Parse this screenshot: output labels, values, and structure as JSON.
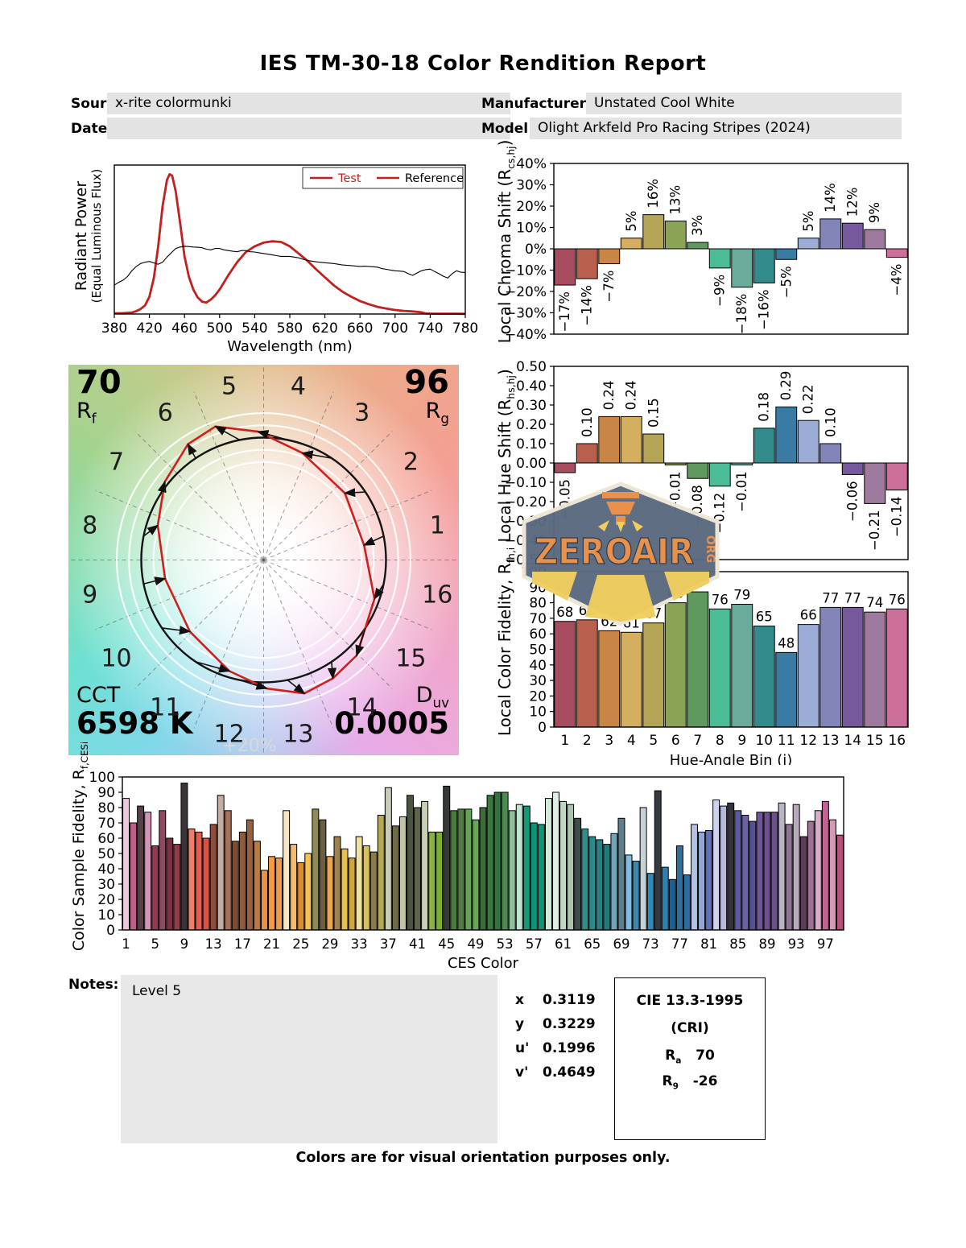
{
  "title": "IES TM-30-18 Color Rendition Report",
  "header": {
    "source_label": "Source:",
    "source_value": "x-rite colormunki",
    "manufacturer_label": "Manufacturer:",
    "manufacturer_value": "Unstated Cool White",
    "date_label": "Date:",
    "date_value": "",
    "model_label": "Model:",
    "model_value": "Olight Arkfeld Pro Racing Stripes (2024)"
  },
  "cvg": {
    "rf_value": "70",
    "rf_base": "R",
    "rf_sub": "f",
    "rg_value": "96",
    "rg_base": "R",
    "rg_sub": "g",
    "cct_label": "CCT",
    "cct_value": "6598 K",
    "duv_base": "D",
    "duv_sub": "uv",
    "duv_value": "0.0005",
    "ring_label": "+20%"
  },
  "watermark": {
    "text": "ZEROAIR",
    "org": "ORG"
  },
  "notes": {
    "label": "Notes:",
    "value": "Level 5"
  },
  "chromaticity": [
    {
      "label": "x",
      "value": "0.3119"
    },
    {
      "label": "y",
      "value": "0.3229"
    },
    {
      "label": "u'",
      "value": "0.1996"
    },
    {
      "label": "v'",
      "value": "0.4649"
    }
  ],
  "cie": {
    "title": "CIE 13.3-1995",
    "subtitle": "(CRI)",
    "rows": [
      {
        "base": "R",
        "sub": "a",
        "value": "70"
      },
      {
        "base": "R",
        "sub": "9",
        "value": "-26"
      }
    ]
  },
  "footer": "Colors are for visual orientation purposes only.",
  "colors": {
    "test_red": "#c41f1f",
    "reference_black": "#000000",
    "header_box_gray": "#e3e3e3",
    "watermark_slate": "#5a6a7f",
    "watermark_orange": "#e8914d",
    "watermark_yellow": "#f0cf5e"
  },
  "bin_colors": [
    "#a84c60",
    "#b85f4e",
    "#c98545",
    "#d4af60",
    "#b3a554",
    "#8ba355",
    "#609960",
    "#4cbc96",
    "#6aab9c",
    "#338b8b",
    "#3a7ba3",
    "#9bacd6",
    "#8384b8",
    "#76589c",
    "#9e7a9e",
    "#cc7099"
  ],
  "chart_data": [
    {
      "id": "spd",
      "type": "line",
      "xlabel": "Wavelength (nm)",
      "ylabel": "Radiant Power",
      "ylabel2": "(Equal Luminous Flux)",
      "xlim": [
        380,
        780
      ],
      "x_ticks": [
        380,
        420,
        460,
        500,
        540,
        580,
        620,
        660,
        700,
        740,
        780
      ],
      "grid": false,
      "legend_position": "top-right",
      "legend": [
        {
          "name": "Test",
          "swatch": "#c41f1f",
          "text_color": "#c41f1f"
        },
        {
          "name": "Reference",
          "swatch": "#c41f1f",
          "text_color": "#000000"
        }
      ],
      "series": [
        {
          "name": "Test",
          "color": "#c41f1f",
          "width": 2.8,
          "points": [
            [
              380,
              0.005
            ],
            [
              390,
              0.006
            ],
            [
              400,
              0.01
            ],
            [
              405,
              0.02
            ],
            [
              410,
              0.035
            ],
            [
              415,
              0.06
            ],
            [
              420,
              0.12
            ],
            [
              425,
              0.25
            ],
            [
              430,
              0.47
            ],
            [
              435,
              0.75
            ],
            [
              440,
              0.93
            ],
            [
              443,
              0.97
            ],
            [
              446,
              0.96
            ],
            [
              450,
              0.85
            ],
            [
              455,
              0.63
            ],
            [
              460,
              0.4
            ],
            [
              465,
              0.26
            ],
            [
              470,
              0.17
            ],
            [
              475,
              0.115
            ],
            [
              480,
              0.085
            ],
            [
              485,
              0.08
            ],
            [
              490,
              0.1
            ],
            [
              495,
              0.13
            ],
            [
              500,
              0.17
            ],
            [
              510,
              0.27
            ],
            [
              520,
              0.36
            ],
            [
              530,
              0.43
            ],
            [
              540,
              0.47
            ],
            [
              550,
              0.495
            ],
            [
              560,
              0.505
            ],
            [
              570,
              0.5
            ],
            [
              580,
              0.47
            ],
            [
              590,
              0.42
            ],
            [
              600,
              0.37
            ],
            [
              610,
              0.31
            ],
            [
              620,
              0.255
            ],
            [
              630,
              0.2
            ],
            [
              640,
              0.155
            ],
            [
              650,
              0.12
            ],
            [
              660,
              0.09
            ],
            [
              670,
              0.068
            ],
            [
              680,
              0.05
            ],
            [
              690,
              0.038
            ],
            [
              700,
              0.028
            ],
            [
              710,
              0.022
            ],
            [
              720,
              0.018
            ],
            [
              730,
              0.012
            ],
            [
              735,
              0.004
            ],
            [
              740,
              0.003
            ],
            [
              750,
              0.002
            ],
            [
              760,
              0.002
            ],
            [
              770,
              0.002
            ],
            [
              780,
              0.001
            ]
          ]
        },
        {
          "name": "Reference",
          "color": "#000000",
          "width": 1.1,
          "points": [
            [
              380,
              0.2
            ],
            [
              385,
              0.22
            ],
            [
              390,
              0.235
            ],
            [
              395,
              0.26
            ],
            [
              400,
              0.3
            ],
            [
              405,
              0.33
            ],
            [
              410,
              0.35
            ],
            [
              415,
              0.36
            ],
            [
              420,
              0.365
            ],
            [
              425,
              0.355
            ],
            [
              430,
              0.345
            ],
            [
              435,
              0.36
            ],
            [
              440,
              0.395
            ],
            [
              445,
              0.425
            ],
            [
              450,
              0.455
            ],
            [
              455,
              0.465
            ],
            [
              460,
              0.47
            ],
            [
              465,
              0.468
            ],
            [
              470,
              0.465
            ],
            [
              475,
              0.463
            ],
            [
              480,
              0.46
            ],
            [
              485,
              0.45
            ],
            [
              490,
              0.445
            ],
            [
              495,
              0.455
            ],
            [
              500,
              0.455
            ],
            [
              505,
              0.445
            ],
            [
              510,
              0.44
            ],
            [
              515,
              0.435
            ],
            [
              520,
              0.432
            ],
            [
              525,
              0.44
            ],
            [
              530,
              0.44
            ],
            [
              535,
              0.432
            ],
            [
              540,
              0.43
            ],
            [
              545,
              0.425
            ],
            [
              550,
              0.42
            ],
            [
              555,
              0.415
            ],
            [
              560,
              0.41
            ],
            [
              565,
              0.405
            ],
            [
              570,
              0.4
            ],
            [
              575,
              0.4
            ],
            [
              580,
              0.4
            ],
            [
              585,
              0.395
            ],
            [
              590,
              0.39
            ],
            [
              595,
              0.38
            ],
            [
              600,
              0.372
            ],
            [
              610,
              0.362
            ],
            [
              620,
              0.356
            ],
            [
              630,
              0.35
            ],
            [
              640,
              0.34
            ],
            [
              650,
              0.336
            ],
            [
              660,
              0.33
            ],
            [
              665,
              0.332
            ],
            [
              670,
              0.33
            ],
            [
              675,
              0.328
            ],
            [
              680,
              0.325
            ],
            [
              685,
              0.315
            ],
            [
              690,
              0.31
            ],
            [
              695,
              0.305
            ],
            [
              700,
              0.3
            ],
            [
              705,
              0.298
            ],
            [
              710,
              0.295
            ],
            [
              715,
              0.28
            ],
            [
              720,
              0.268
            ],
            [
              725,
              0.285
            ],
            [
              730,
              0.3
            ],
            [
              735,
              0.308
            ],
            [
              740,
              0.312
            ],
            [
              745,
              0.295
            ],
            [
              750,
              0.28
            ],
            [
              755,
              0.262
            ],
            [
              760,
              0.25
            ],
            [
              765,
              0.28
            ],
            [
              770,
              0.3
            ],
            [
              775,
              0.29
            ],
            [
              780,
              0.288
            ]
          ]
        }
      ]
    },
    {
      "id": "chroma_shift",
      "type": "bar",
      "ylabel_pre": "Local Chroma Shift (R",
      "ylabel_sub": "cs,hj",
      "ylabel_post": ")",
      "ylim": [
        -40,
        40
      ],
      "tick_step": 10,
      "tick_suffix": "%",
      "categories": [
        1,
        2,
        3,
        4,
        5,
        6,
        7,
        8,
        9,
        10,
        11,
        12,
        13,
        14,
        15,
        16
      ],
      "values": [
        -17,
        -14,
        -7,
        5,
        16,
        13,
        3,
        -9,
        -18,
        -16,
        -5,
        5,
        14,
        12,
        9,
        -4
      ],
      "label_suffix": "%"
    },
    {
      "id": "hue_shift",
      "type": "bar",
      "ylabel_pre": "Local Hue Shift (R",
      "ylabel_sub": "hs,hj",
      "ylabel_post": ")",
      "ylim": [
        -0.5,
        0.5
      ],
      "tick_step": 0.1,
      "decimals": 2,
      "categories": [
        1,
        2,
        3,
        4,
        5,
        6,
        7,
        8,
        9,
        10,
        11,
        12,
        13,
        14,
        15,
        16
      ],
      "values": [
        -0.05,
        0.1,
        0.24,
        0.24,
        0.15,
        -0.01,
        -0.08,
        -0.12,
        -0.01,
        0.18,
        0.29,
        0.22,
        0.1,
        -0.06,
        -0.21,
        -0.14
      ]
    },
    {
      "id": "local_fidelity",
      "type": "bar",
      "ylabel_pre": "Local Color Fidelity, R",
      "ylabel_sub": "fh,i",
      "ylabel_post": "",
      "xlabel": "Hue-Angle Bin (j)",
      "ylim": [
        0,
        100
      ],
      "tick_step": 10,
      "categories": [
        1,
        2,
        3,
        4,
        5,
        6,
        7,
        8,
        9,
        10,
        11,
        12,
        13,
        14,
        15,
        16
      ],
      "values": [
        68,
        69,
        62,
        61,
        67,
        80,
        87,
        76,
        79,
        65,
        48,
        66,
        77,
        77,
        74,
        76
      ]
    },
    {
      "id": "ces_fidelity",
      "type": "bar",
      "ylabel_pre": "Color Sample Fidelity, R",
      "ylabel_sub": "f,CESi",
      "ylabel_post": "",
      "xlabel": "CES Color",
      "ylim": [
        0,
        100
      ],
      "tick_step": 10,
      "x_tick_every": 4,
      "x_tick_start": 1,
      "values": [
        86,
        70,
        81,
        77,
        55,
        78,
        60,
        56,
        96,
        66,
        64,
        60,
        69,
        88,
        78,
        58,
        64,
        72,
        58,
        39,
        48,
        47,
        78,
        56,
        44,
        50,
        79,
        72,
        48,
        61,
        53,
        47,
        61,
        55,
        51,
        75,
        93,
        68,
        74,
        88,
        80,
        84,
        64,
        64,
        94,
        78,
        79,
        79,
        72,
        80,
        88,
        90,
        90,
        78,
        82,
        81,
        70,
        69,
        86,
        90,
        84,
        82,
        73,
        66,
        61,
        59,
        56,
        63,
        73,
        49,
        45,
        80,
        37,
        91,
        41,
        33,
        55,
        36,
        69,
        64,
        65,
        85,
        81,
        83,
        78,
        75,
        71,
        77,
        77,
        77,
        83,
        69,
        82,
        61,
        71,
        78,
        84,
        72,
        62
      ],
      "colors": [
        "#edc8d8",
        "#bb6189",
        "#584048",
        "#d394b6",
        "#953951",
        "#8d4a63",
        "#7d3044",
        "#903c49",
        "#3a3439",
        "#ef7f6c",
        "#e35d50",
        "#da5044",
        "#8e4c3c",
        "#c4aca2",
        "#a5735b",
        "#7c4b34",
        "#8b5b3e",
        "#976140",
        "#b77b45",
        "#e99241",
        "#f09c46",
        "#f09b4b",
        "#f5e5c7",
        "#f6ba6c",
        "#db8b30",
        "#f6c350",
        "#8f8a58",
        "#6c5e43",
        "#eaa64b",
        "#a1814f",
        "#e6c151",
        "#cfa640",
        "#f1e1a1",
        "#d8c05e",
        "#8a7b4a",
        "#b5a855",
        "#c9cdb7",
        "#6f6b4a",
        "#c3c4a2",
        "#4a5440",
        "#5c6647",
        "#c8d0b4",
        "#89b33e",
        "#7fae37",
        "#353a36",
        "#4b7a3e",
        "#517d43",
        "#65a356",
        "#69a65a",
        "#3d6b3a",
        "#3a7840",
        "#32743c",
        "#4b8a50",
        "#8fbf9a",
        "#c2e2d2",
        "#129a76",
        "#0b9678",
        "#0f9478",
        "#d2e9dc",
        "#ddefe4",
        "#bfd7c5",
        "#abc2ae",
        "#3d4d49",
        "#2d908c",
        "#2b8a89",
        "#278284",
        "#217c7e",
        "#72a3b8",
        "#5d808b",
        "#82bbdb",
        "#4187ab",
        "#c7d2d6",
        "#3189ba",
        "#36393f",
        "#2e80b4",
        "#20608f",
        "#316e9a",
        "#2c6da4",
        "#b1c2e2",
        "#91a7d2",
        "#6170ba",
        "#ced2ec",
        "#b6badc",
        "#35333b",
        "#5c5a9e",
        "#6a62a4",
        "#565194",
        "#6f5694",
        "#6c518e",
        "#6c518e",
        "#bab4c4",
        "#8c7694",
        "#b7aaba",
        "#5e3c57",
        "#9c7194",
        "#d6acc8",
        "#c26493",
        "#d898b8",
        "#b75077"
      ]
    }
  ]
}
